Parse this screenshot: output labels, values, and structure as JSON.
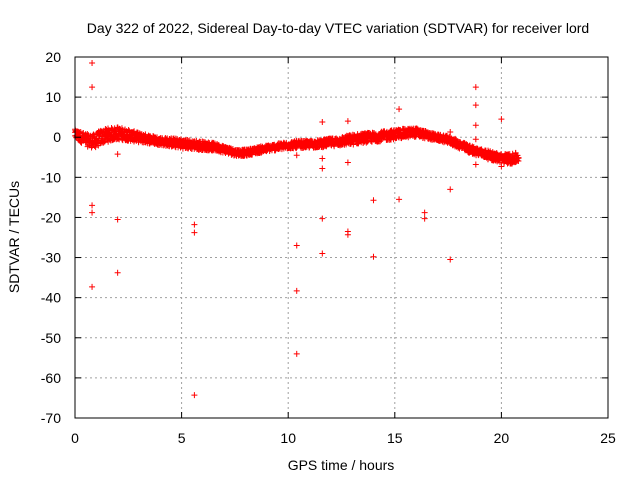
{
  "chart_data": {
    "type": "scatter",
    "title": "Day 322 of 2022, Sidereal Day-to-day VTEC variation (SDTVAR) for receiver lord",
    "xlabel": "GPS time / hours",
    "ylabel": "SDTVAR / TECUs",
    "xlim": [
      0,
      25
    ],
    "ylim": [
      -70,
      20
    ],
    "xticks": [
      0,
      5,
      10,
      15,
      20,
      25
    ],
    "yticks": [
      20,
      10,
      0,
      -10,
      -20,
      -30,
      -40,
      -50,
      -60,
      -70
    ],
    "grid": true,
    "marker": "plus",
    "color": "#ff0000",
    "trend": [
      [
        0.0,
        0.8
      ],
      [
        0.3,
        0.0
      ],
      [
        0.6,
        -0.8
      ],
      [
        0.9,
        -1.0
      ],
      [
        1.2,
        0.0
      ],
      [
        1.6,
        0.6
      ],
      [
        2.0,
        1.0
      ],
      [
        2.5,
        0.5
      ],
      [
        3.0,
        -0.1
      ],
      [
        3.5,
        -0.5
      ],
      [
        4.0,
        -1.0
      ],
      [
        4.5,
        -1.3
      ],
      [
        5.0,
        -1.6
      ],
      [
        5.5,
        -1.9
      ],
      [
        6.0,
        -2.1
      ],
      [
        6.5,
        -2.4
      ],
      [
        7.0,
        -3.0
      ],
      [
        7.5,
        -3.8
      ],
      [
        8.0,
        -3.9
      ],
      [
        8.5,
        -3.3
      ],
      [
        9.0,
        -2.8
      ],
      [
        9.5,
        -2.4
      ],
      [
        10.0,
        -2.0
      ],
      [
        10.5,
        -1.8
      ],
      [
        11.0,
        -1.8
      ],
      [
        11.5,
        -1.6
      ],
      [
        12.0,
        -1.3
      ],
      [
        12.5,
        -1.0
      ],
      [
        13.0,
        -0.6
      ],
      [
        13.5,
        -0.2
      ],
      [
        14.0,
        0.0
      ],
      [
        14.5,
        0.3
      ],
      [
        15.0,
        0.7
      ],
      [
        15.5,
        1.0
      ],
      [
        16.0,
        1.2
      ],
      [
        16.5,
        0.5
      ],
      [
        17.0,
        -0.1
      ],
      [
        17.5,
        -0.6
      ],
      [
        18.0,
        -1.8
      ],
      [
        18.5,
        -3.0
      ],
      [
        19.0,
        -3.8
      ],
      [
        19.5,
        -4.6
      ],
      [
        20.0,
        -5.3
      ],
      [
        20.5,
        -5.4
      ],
      [
        20.8,
        -5.0
      ]
    ],
    "band": [
      [
        0.0,
        1.2
      ],
      [
        1.0,
        1.8
      ],
      [
        2.0,
        1.6
      ],
      [
        3.0,
        1.2
      ],
      [
        4.0,
        1.0
      ],
      [
        5.0,
        1.2
      ],
      [
        6.0,
        1.1
      ],
      [
        7.0,
        0.9
      ],
      [
        8.0,
        0.8
      ],
      [
        9.0,
        0.8
      ],
      [
        10.0,
        0.9
      ],
      [
        11.0,
        0.9
      ],
      [
        12.0,
        1.0
      ],
      [
        13.0,
        1.3
      ],
      [
        14.0,
        1.2
      ],
      [
        15.0,
        1.2
      ],
      [
        16.0,
        1.1
      ],
      [
        17.0,
        0.8
      ],
      [
        18.0,
        1.0
      ],
      [
        19.0,
        1.0
      ],
      [
        20.0,
        1.2
      ],
      [
        20.8,
        1.3
      ]
    ],
    "outliers": [
      [
        0.8,
        18.5
      ],
      [
        0.8,
        12.5
      ],
      [
        0.8,
        -17.0
      ],
      [
        0.8,
        -18.8
      ],
      [
        0.8,
        -37.3
      ],
      [
        2.0,
        -4.2
      ],
      [
        2.0,
        -20.5
      ],
      [
        2.0,
        -33.8
      ],
      [
        5.6,
        -21.8
      ],
      [
        5.6,
        -23.8
      ],
      [
        5.6,
        -64.3
      ],
      [
        10.4,
        -4.5
      ],
      [
        10.4,
        -27.0
      ],
      [
        10.4,
        -38.3
      ],
      [
        10.4,
        -54.0
      ],
      [
        11.6,
        3.8
      ],
      [
        11.6,
        -5.3
      ],
      [
        11.6,
        -7.8
      ],
      [
        11.6,
        -20.3
      ],
      [
        11.6,
        -29.0
      ],
      [
        12.8,
        4.0
      ],
      [
        12.8,
        -6.3
      ],
      [
        12.8,
        -23.5
      ],
      [
        12.8,
        -24.3
      ],
      [
        14.0,
        -15.7
      ],
      [
        14.0,
        -29.8
      ],
      [
        15.2,
        7.0
      ],
      [
        15.2,
        -15.5
      ],
      [
        16.4,
        -18.8
      ],
      [
        16.4,
        -20.3
      ],
      [
        17.6,
        1.3
      ],
      [
        17.6,
        -13.0
      ],
      [
        17.6,
        -30.5
      ],
      [
        18.8,
        12.5
      ],
      [
        18.8,
        8.0
      ],
      [
        18.8,
        3.0
      ],
      [
        18.8,
        -0.5
      ],
      [
        18.8,
        -6.8
      ],
      [
        20.0,
        4.5
      ],
      [
        20.0,
        -7.3
      ]
    ]
  }
}
